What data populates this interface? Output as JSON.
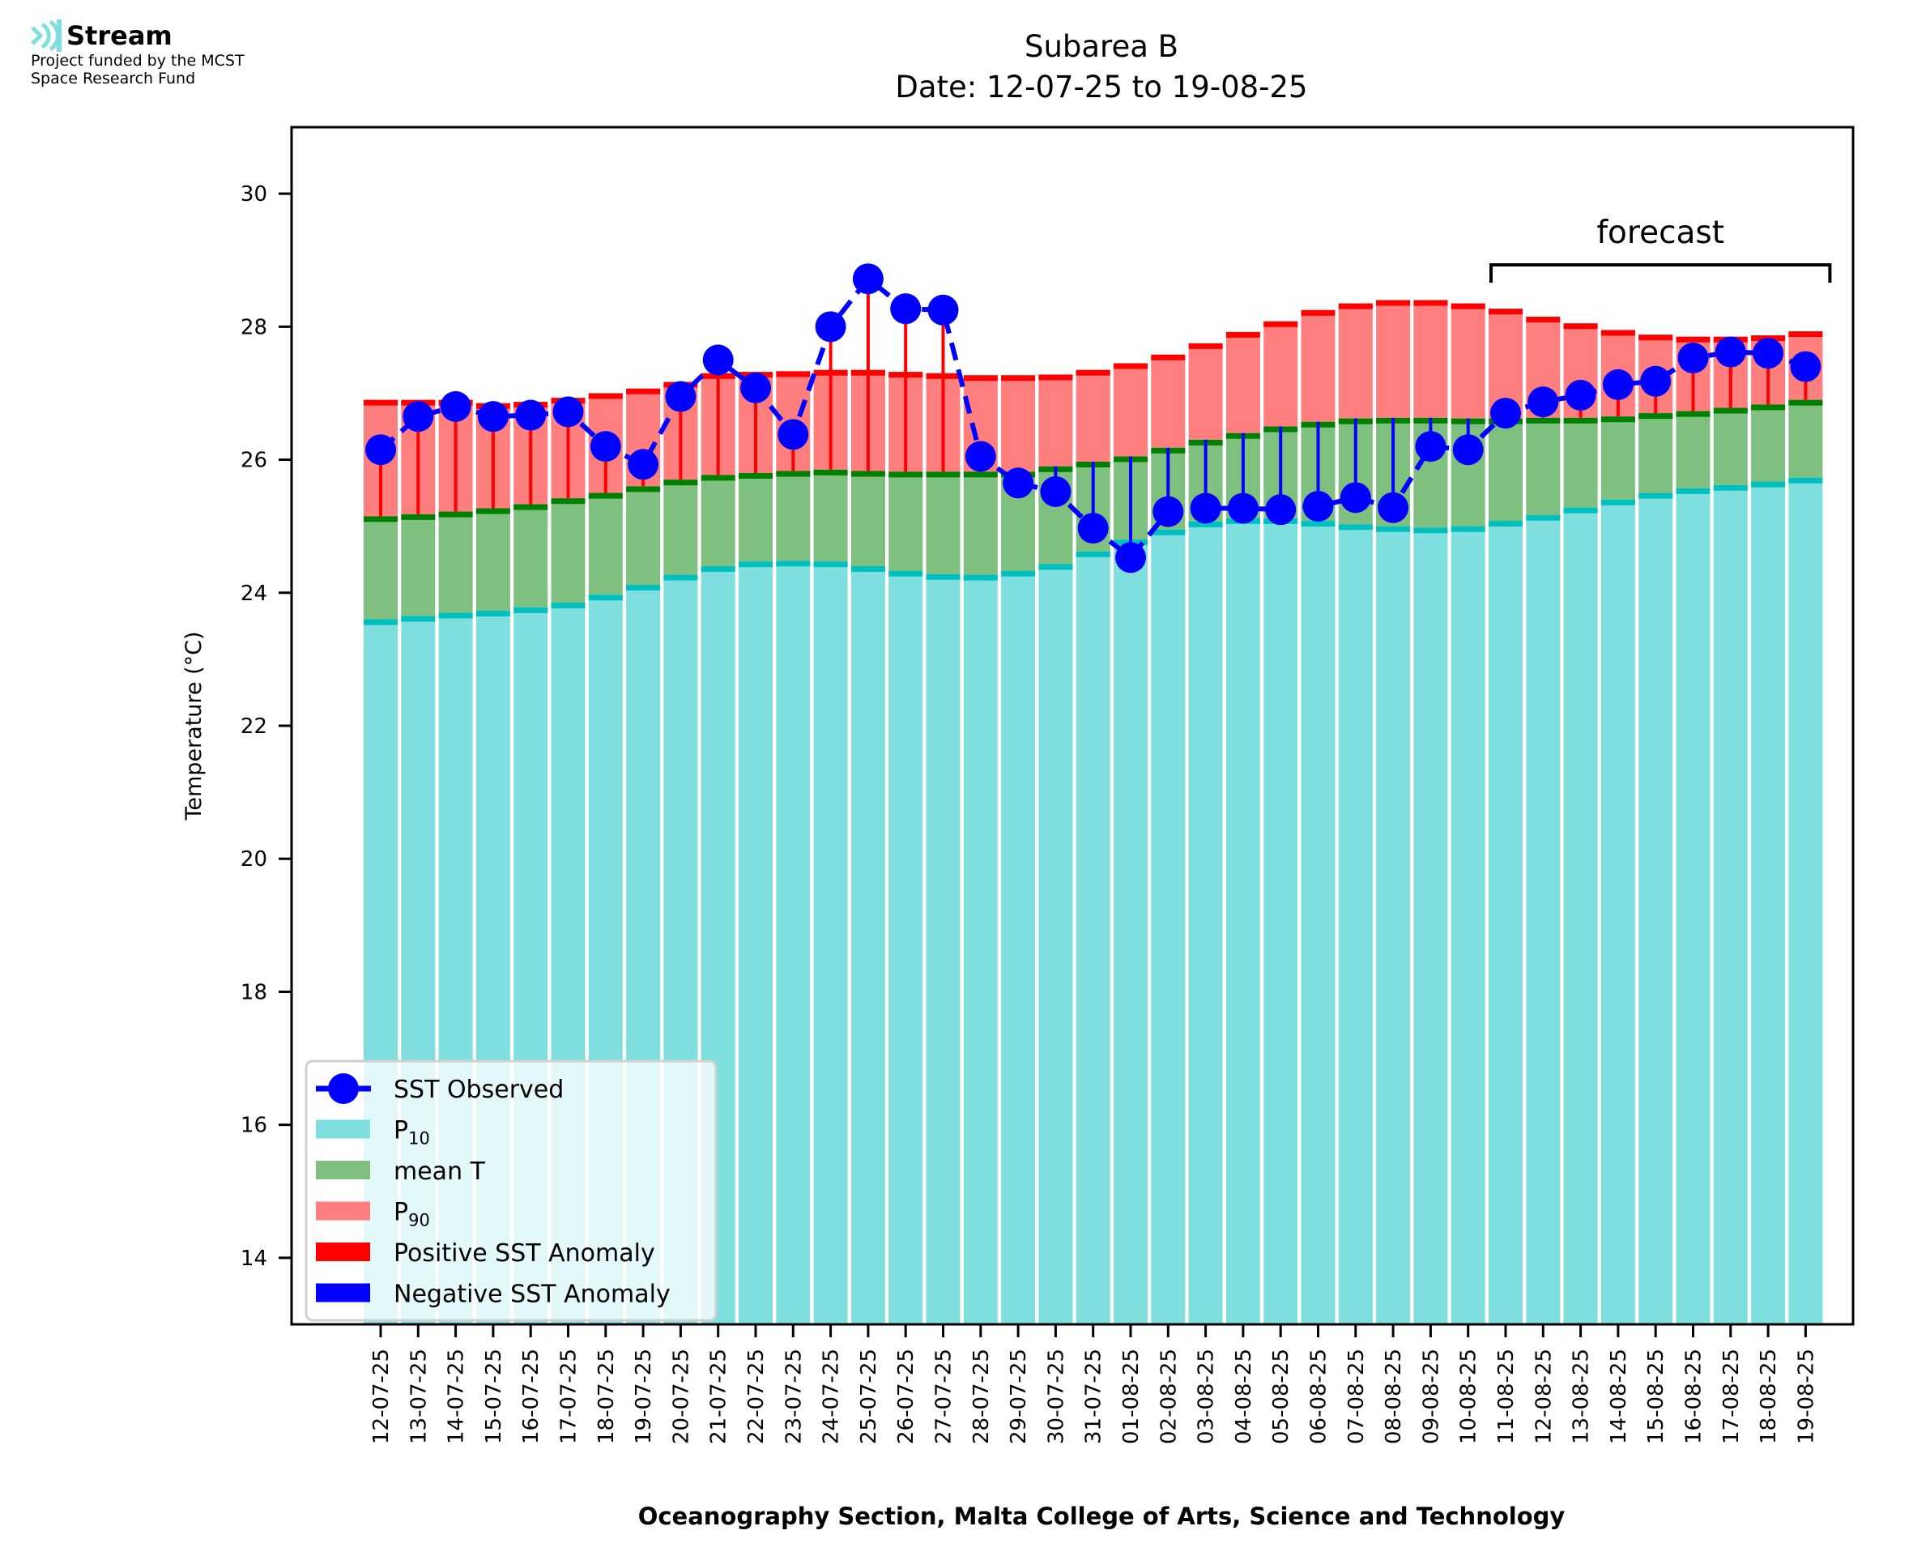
{
  "logo": {
    "name": "Stream",
    "line1": "Project funded by the MCST",
    "line2": "Space Research Fund",
    "icon": "stream-waves-icon",
    "color": "#7fdfdc"
  },
  "chart_data": {
    "type": "bar",
    "title": "Subarea B",
    "subtitle": "Date: 12-07-25 to 19-08-25",
    "xlabel": "Oceanography Section, Malta College of Arts, Science and Technology",
    "ylabel": "Temperature (°C)",
    "ylim": [
      13.0,
      31.0
    ],
    "yticks": [
      14,
      16,
      18,
      20,
      22,
      24,
      26,
      28,
      30
    ],
    "grid": false,
    "legend_position": "bottom-left",
    "categories": [
      "12-07-25",
      "13-07-25",
      "14-07-25",
      "15-07-25",
      "16-07-25",
      "17-07-25",
      "18-07-25",
      "19-07-25",
      "20-07-25",
      "21-07-25",
      "22-07-25",
      "23-07-25",
      "24-07-25",
      "25-07-25",
      "26-07-25",
      "27-07-25",
      "28-07-25",
      "29-07-25",
      "30-07-25",
      "31-07-25",
      "01-08-25",
      "02-08-25",
      "03-08-25",
      "04-08-25",
      "05-08-25",
      "06-08-25",
      "07-08-25",
      "08-08-25",
      "09-08-25",
      "10-08-25",
      "11-08-25",
      "12-08-25",
      "13-08-25",
      "14-08-25",
      "15-08-25",
      "16-08-25",
      "17-08-25",
      "18-08-25",
      "19-08-25"
    ],
    "series": [
      {
        "name": "P90",
        "legend_label": "P",
        "legend_sub": "90",
        "color": "#ff7f7f",
        "edge_color": "#ff0000",
        "values": [
          26.9,
          26.9,
          26.9,
          26.85,
          26.87,
          26.93,
          27.0,
          27.07,
          27.17,
          27.3,
          27.32,
          27.33,
          27.35,
          27.35,
          27.32,
          27.3,
          27.27,
          27.27,
          27.28,
          27.35,
          27.45,
          27.58,
          27.75,
          27.92,
          28.08,
          28.25,
          28.35,
          28.4,
          28.4,
          28.35,
          28.27,
          28.15,
          28.05,
          27.95,
          27.88,
          27.85,
          27.85,
          27.87,
          27.93
        ]
      },
      {
        "name": "mean T",
        "legend_label": "mean T",
        "legend_sub": "",
        "color": "#7fbf7f",
        "edge_color": "#008000",
        "values": [
          25.15,
          25.18,
          25.22,
          25.27,
          25.33,
          25.42,
          25.5,
          25.6,
          25.7,
          25.77,
          25.8,
          25.83,
          25.85,
          25.83,
          25.82,
          25.82,
          25.82,
          25.82,
          25.9,
          25.97,
          26.05,
          26.18,
          26.3,
          26.4,
          26.5,
          26.57,
          26.62,
          26.63,
          26.63,
          26.62,
          26.62,
          26.63,
          26.63,
          26.65,
          26.7,
          26.73,
          26.78,
          26.83,
          26.9
        ]
      },
      {
        "name": "P10",
        "legend_label": "P",
        "legend_sub": "10",
        "color": "#7fdfdf",
        "edge_color": "#00bfbf",
        "values": [
          23.6,
          23.65,
          23.7,
          23.73,
          23.78,
          23.85,
          23.97,
          24.12,
          24.27,
          24.4,
          24.47,
          24.48,
          24.47,
          24.4,
          24.33,
          24.28,
          24.27,
          24.33,
          24.43,
          24.62,
          24.8,
          24.95,
          25.07,
          25.12,
          25.12,
          25.08,
          25.03,
          25.0,
          24.98,
          25.0,
          25.08,
          25.17,
          25.28,
          25.4,
          25.5,
          25.57,
          25.62,
          25.67,
          25.73
        ]
      },
      {
        "name": "SST Observed",
        "type": "line",
        "color": "#0000ff",
        "values": [
          26.15,
          26.65,
          26.8,
          26.65,
          26.67,
          26.72,
          26.2,
          25.93,
          26.95,
          27.5,
          27.08,
          26.38,
          28.0,
          28.72,
          28.27,
          28.25,
          26.05,
          25.65,
          25.52,
          24.97,
          24.53,
          25.22,
          25.27,
          25.27,
          25.25,
          25.3,
          25.43,
          25.28,
          26.2,
          26.15,
          26.7,
          26.87,
          26.97,
          27.13,
          27.18,
          27.53,
          27.62,
          27.6,
          27.4
        ]
      }
    ],
    "anomaly_colors": {
      "positive": "#ff0000",
      "negative": "#0000ff"
    },
    "legend": [
      {
        "key": "sst",
        "label": "SST Observed",
        "sub": "",
        "swatch": "line-marker",
        "color": "#0000ff"
      },
      {
        "key": "p10",
        "label": "P",
        "sub": "10",
        "swatch": "patch",
        "color": "#7fdfdf"
      },
      {
        "key": "mean",
        "label": "mean T",
        "sub": "",
        "swatch": "patch",
        "color": "#7fbf7f"
      },
      {
        "key": "p90",
        "label": "P",
        "sub": "90",
        "swatch": "patch",
        "color": "#ff7f7f"
      },
      {
        "key": "pos",
        "label": "Positive SST Anomaly",
        "sub": "",
        "swatch": "patch",
        "color": "#ff0000"
      },
      {
        "key": "neg",
        "label": "Negative SST Anomaly",
        "sub": "",
        "swatch": "patch",
        "color": "#0000ff"
      }
    ],
    "annotations": [
      {
        "text": "forecast",
        "from_category": "11-08-25",
        "to_category": "19-08-25",
        "style": "bracket"
      }
    ]
  }
}
